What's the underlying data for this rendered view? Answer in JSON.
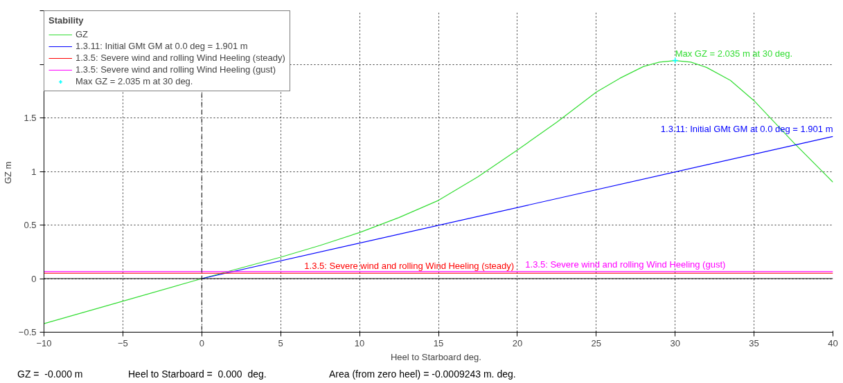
{
  "chart_data": {
    "type": "line",
    "xlabel": "Heel to Starboard   deg.",
    "ylabel": "GZ  m",
    "legend_title": "Stability",
    "xlim": [
      -10,
      40
    ],
    "xticks": [
      -10,
      -5,
      0,
      5,
      10,
      15,
      20,
      25,
      30,
      35,
      40
    ],
    "ylim": [
      -0.5,
      2.5
    ],
    "yticks": [
      -0.5,
      0,
      0.5,
      1,
      1.5,
      {
        "value": 2,
        "label": null
      },
      {
        "value": 2.5,
        "label": null
      }
    ],
    "grid": true,
    "legend": "top left",
    "series": [
      {
        "name": "GZ",
        "color": "#33dd33",
        "x": [
          -10,
          -5,
          0,
          5,
          7.5,
          10,
          12.5,
          15,
          17.5,
          20,
          22.5,
          25,
          26.5,
          28,
          29,
          30,
          31,
          32,
          33.5,
          35,
          37.5,
          40
        ],
        "values": [
          -0.42,
          -0.21,
          0,
          0.2,
          0.31,
          0.43,
          0.57,
          0.73,
          0.95,
          1.2,
          1.46,
          1.74,
          1.87,
          1.98,
          2.02,
          2.035,
          2.02,
          1.97,
          1.85,
          1.66,
          1.27,
          0.9
        ]
      },
      {
        "name": "1.3.11: Initial GMt GM at 0.0 deg = 1.901 m",
        "color": "#0000ff",
        "x": [
          0,
          40
        ],
        "values": [
          0,
          1.327
        ]
      },
      {
        "name": "1.3.5: Severe wind and rolling Wind Heeling (steady)",
        "color": "#ff0000",
        "x": [
          -10,
          40
        ],
        "values": [
          0.05,
          0.05
        ]
      },
      {
        "name": "1.3.5: Severe wind and rolling Wind Heeling (gust)",
        "color": "#ff00ff",
        "x": [
          -10,
          40
        ],
        "values": [
          0.065,
          0.065
        ]
      },
      {
        "name": "Max GZ = 2.035 m at 30 deg.",
        "color": "#00ffff",
        "type": "scatter",
        "marker": "cross",
        "x": [
          30
        ],
        "values": [
          2.035
        ]
      }
    ],
    "ref_lines": [
      {
        "axis": "x",
        "value": 0,
        "label": null,
        "color": "#000000",
        "line_style": "dashed"
      },
      {
        "axis": "y",
        "value": 0,
        "label": null,
        "color": "#000000",
        "line_style": "solid"
      }
    ],
    "annotations": [
      {
        "text": "Max GZ = 2.035 m at 30 deg.",
        "x": 30,
        "y": 2.035
      },
      {
        "text": "1.3.11: Initial GMt GM at 0.0 deg = 1.901 m",
        "x": 40,
        "y": 1.327
      },
      {
        "text": "1.3.5: Severe wind and rolling Wind Heeling (steady)",
        "x": 6.5,
        "y": 0.05
      },
      {
        "text": "1.3.5: Severe wind and rolling Wind Heeling (gust)",
        "x": 20.5,
        "y": 0.065
      },
      "GZ =  -0.000 m",
      "Heel to Starboard =  0.000  deg.",
      "Area (from zero heel) = -0.0009243 m. deg."
    ]
  }
}
